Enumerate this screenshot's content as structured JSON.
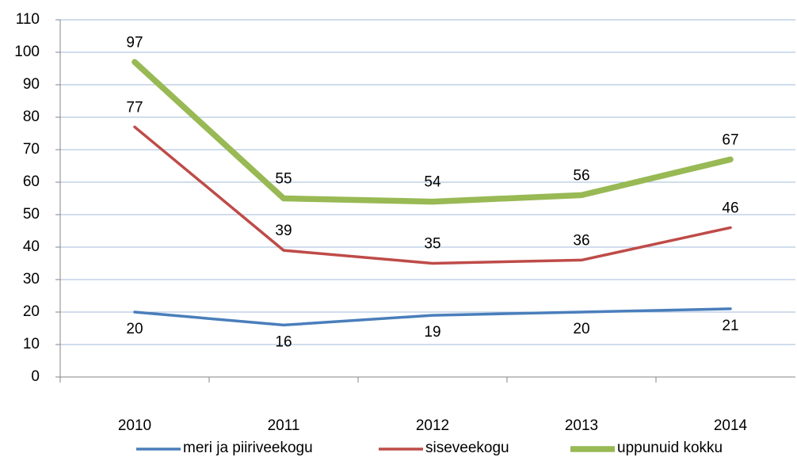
{
  "chart_data": {
    "type": "line",
    "categories": [
      "2010",
      "2011",
      "2012",
      "2013",
      "2014"
    ],
    "series": [
      {
        "name": "meri ja piiriveekogu",
        "color": "#4a7ebb",
        "values": [
          20,
          16,
          19,
          20,
          21
        ]
      },
      {
        "name": "siseveekogu",
        "color": "#be4b48",
        "values": [
          77,
          39,
          35,
          36,
          46
        ]
      },
      {
        "name": "uppunuid kokku",
        "color": "#98b954",
        "values": [
          97,
          55,
          54,
          56,
          67
        ]
      }
    ],
    "ylim": [
      0,
      110
    ],
    "yticks": [
      0,
      10,
      20,
      30,
      40,
      50,
      60,
      70,
      80,
      90,
      100,
      110
    ],
    "grid": true,
    "legend": "bottom"
  }
}
